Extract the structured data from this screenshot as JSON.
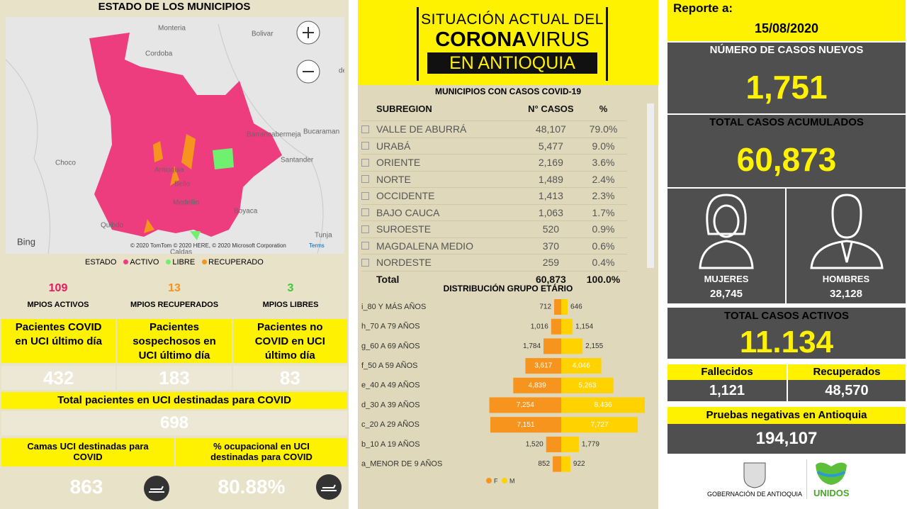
{
  "left": {
    "title": "ESTADO DE LOS MUNICIPIOS",
    "map": {
      "labels": [
        "Monteria",
        "Bolivar",
        "Cordoba",
        "Barrancabermeja",
        "Bucaraman",
        "Choco",
        "Santander",
        "Antioquia",
        "Bello",
        "Medellin",
        "Boyaca",
        "Quibdo",
        "Tunja",
        "Caldas",
        "de S"
      ],
      "bing": "Bing",
      "copyright": "© 2020 TomTom © 2020 HERE, © 2020 Microsoft Corporation",
      "terms": "Terms"
    },
    "legend": {
      "title": "ESTADO",
      "items": [
        "ACTIVO",
        "LIBRE",
        "RECUPERADO"
      ]
    },
    "counts": [
      {
        "value": "109",
        "label": "MPIOS ACTIVOS"
      },
      {
        "value": "13",
        "label": "MPIOS RECUPERADOS"
      },
      {
        "value": "3",
        "label": "MPIOS LIBRES"
      }
    ],
    "uci": [
      {
        "label": "Pacientes COVID en UCI último día",
        "value": "432"
      },
      {
        "label": "Pacientes sospechosos en UCI último día",
        "value": "183"
      },
      {
        "label": "Pacientes no COVID en UCI último día",
        "value": "83"
      }
    ],
    "total_uci": {
      "label": "Total pacientes en UCI destinadas para COVID",
      "value": "698"
    },
    "camas": {
      "label": "Camas UCI destinadas para COVID",
      "value": "863"
    },
    "ocupacion": {
      "label": "% ocupacional en UCI destinadas para COVID",
      "value": "80.88%"
    }
  },
  "middle": {
    "banner": {
      "line1": "SITUACIÓN ACTUAL DEL",
      "corona": "CORONA",
      "virus": "VIRUS",
      "line3": "EN ANTIOQUIA"
    },
    "table": {
      "title": "MUNICIPIOS CON CASOS COVID-19",
      "headers": [
        "SUBREGION",
        "N° CASOS",
        "%"
      ],
      "rows": [
        [
          "VALLE DE ABURRÁ",
          "48,107",
          "79.0%"
        ],
        [
          "URABÁ",
          "5,477",
          "9.0%"
        ],
        [
          "ORIENTE",
          "2,169",
          "3.6%"
        ],
        [
          "NORTE",
          "1,489",
          "2.4%"
        ],
        [
          "OCCIDENTE",
          "1,413",
          "2.3%"
        ],
        [
          "BAJO CAUCA",
          "1,063",
          "1.7%"
        ],
        [
          "SUROESTE",
          "520",
          "0.9%"
        ],
        [
          "MAGDALENA MEDIO",
          "370",
          "0.6%"
        ],
        [
          "NORDESTE",
          "259",
          "0.4%"
        ]
      ],
      "total": [
        "Total",
        "60,873",
        "100.0%"
      ]
    },
    "age_chart": {
      "type": "bar",
      "title": "DISTRIBUCIÓN GRUPO ETÁRIO",
      "categories": [
        "i_80 Y MÁS AÑOS",
        "h_70 A 79 AÑOS",
        "g_60 A 69 AÑOS",
        "f_50 A 59 AÑOS",
        "e_40 A 49 AÑOS",
        "d_30 A 39 AÑOS",
        "c_20 A 29 AÑOS",
        "b_10 A 19 AÑOS",
        "a_MENOR DE 9 AÑOS"
      ],
      "series": [
        {
          "name": "F",
          "color": "#f7941d",
          "values": [
            712,
            1016,
            1784,
            3617,
            4839,
            7254,
            7151,
            1520,
            852
          ],
          "value_labels": [
            "712",
            "1,016",
            "1,784",
            "3,617",
            "4,839",
            "7,254",
            "7,151",
            "1,520",
            "852"
          ]
        },
        {
          "name": "M",
          "color": "#ffd200",
          "values": [
            646,
            1154,
            2155,
            4046,
            5263,
            8436,
            7727,
            1779,
            922
          ],
          "value_labels": [
            "646",
            "1,154",
            "2,155",
            "4,046",
            "5,263",
            "8,436",
            "7,727",
            "1,779",
            "922"
          ]
        }
      ]
    }
  },
  "right": {
    "report_label": "Reporte a:",
    "report_date": "15/08/2020",
    "new_cases": {
      "label": "NÚMERO DE CASOS NUEVOS",
      "value": "1,751"
    },
    "total_cases": {
      "label": "TOTAL CASOS ACUMULADOS",
      "value": "60,873"
    },
    "women": {
      "label": "MUJERES",
      "value": "28,745"
    },
    "men": {
      "label": "HOMBRES",
      "value": "32,128"
    },
    "active": {
      "label": "TOTAL CASOS ACTIVOS",
      "value": "11.134"
    },
    "deaths": {
      "label": "Fallecidos",
      "value": "1,121"
    },
    "recovered": {
      "label": "Recuperados",
      "value": "48,570"
    },
    "negatives": {
      "label": "Pruebas negativas en Antioquia",
      "value": "194,107"
    },
    "gov_logo": "GOBERNACIÓN DE ANTIOQUIA",
    "unidos_logo": "UNIDOS"
  }
}
